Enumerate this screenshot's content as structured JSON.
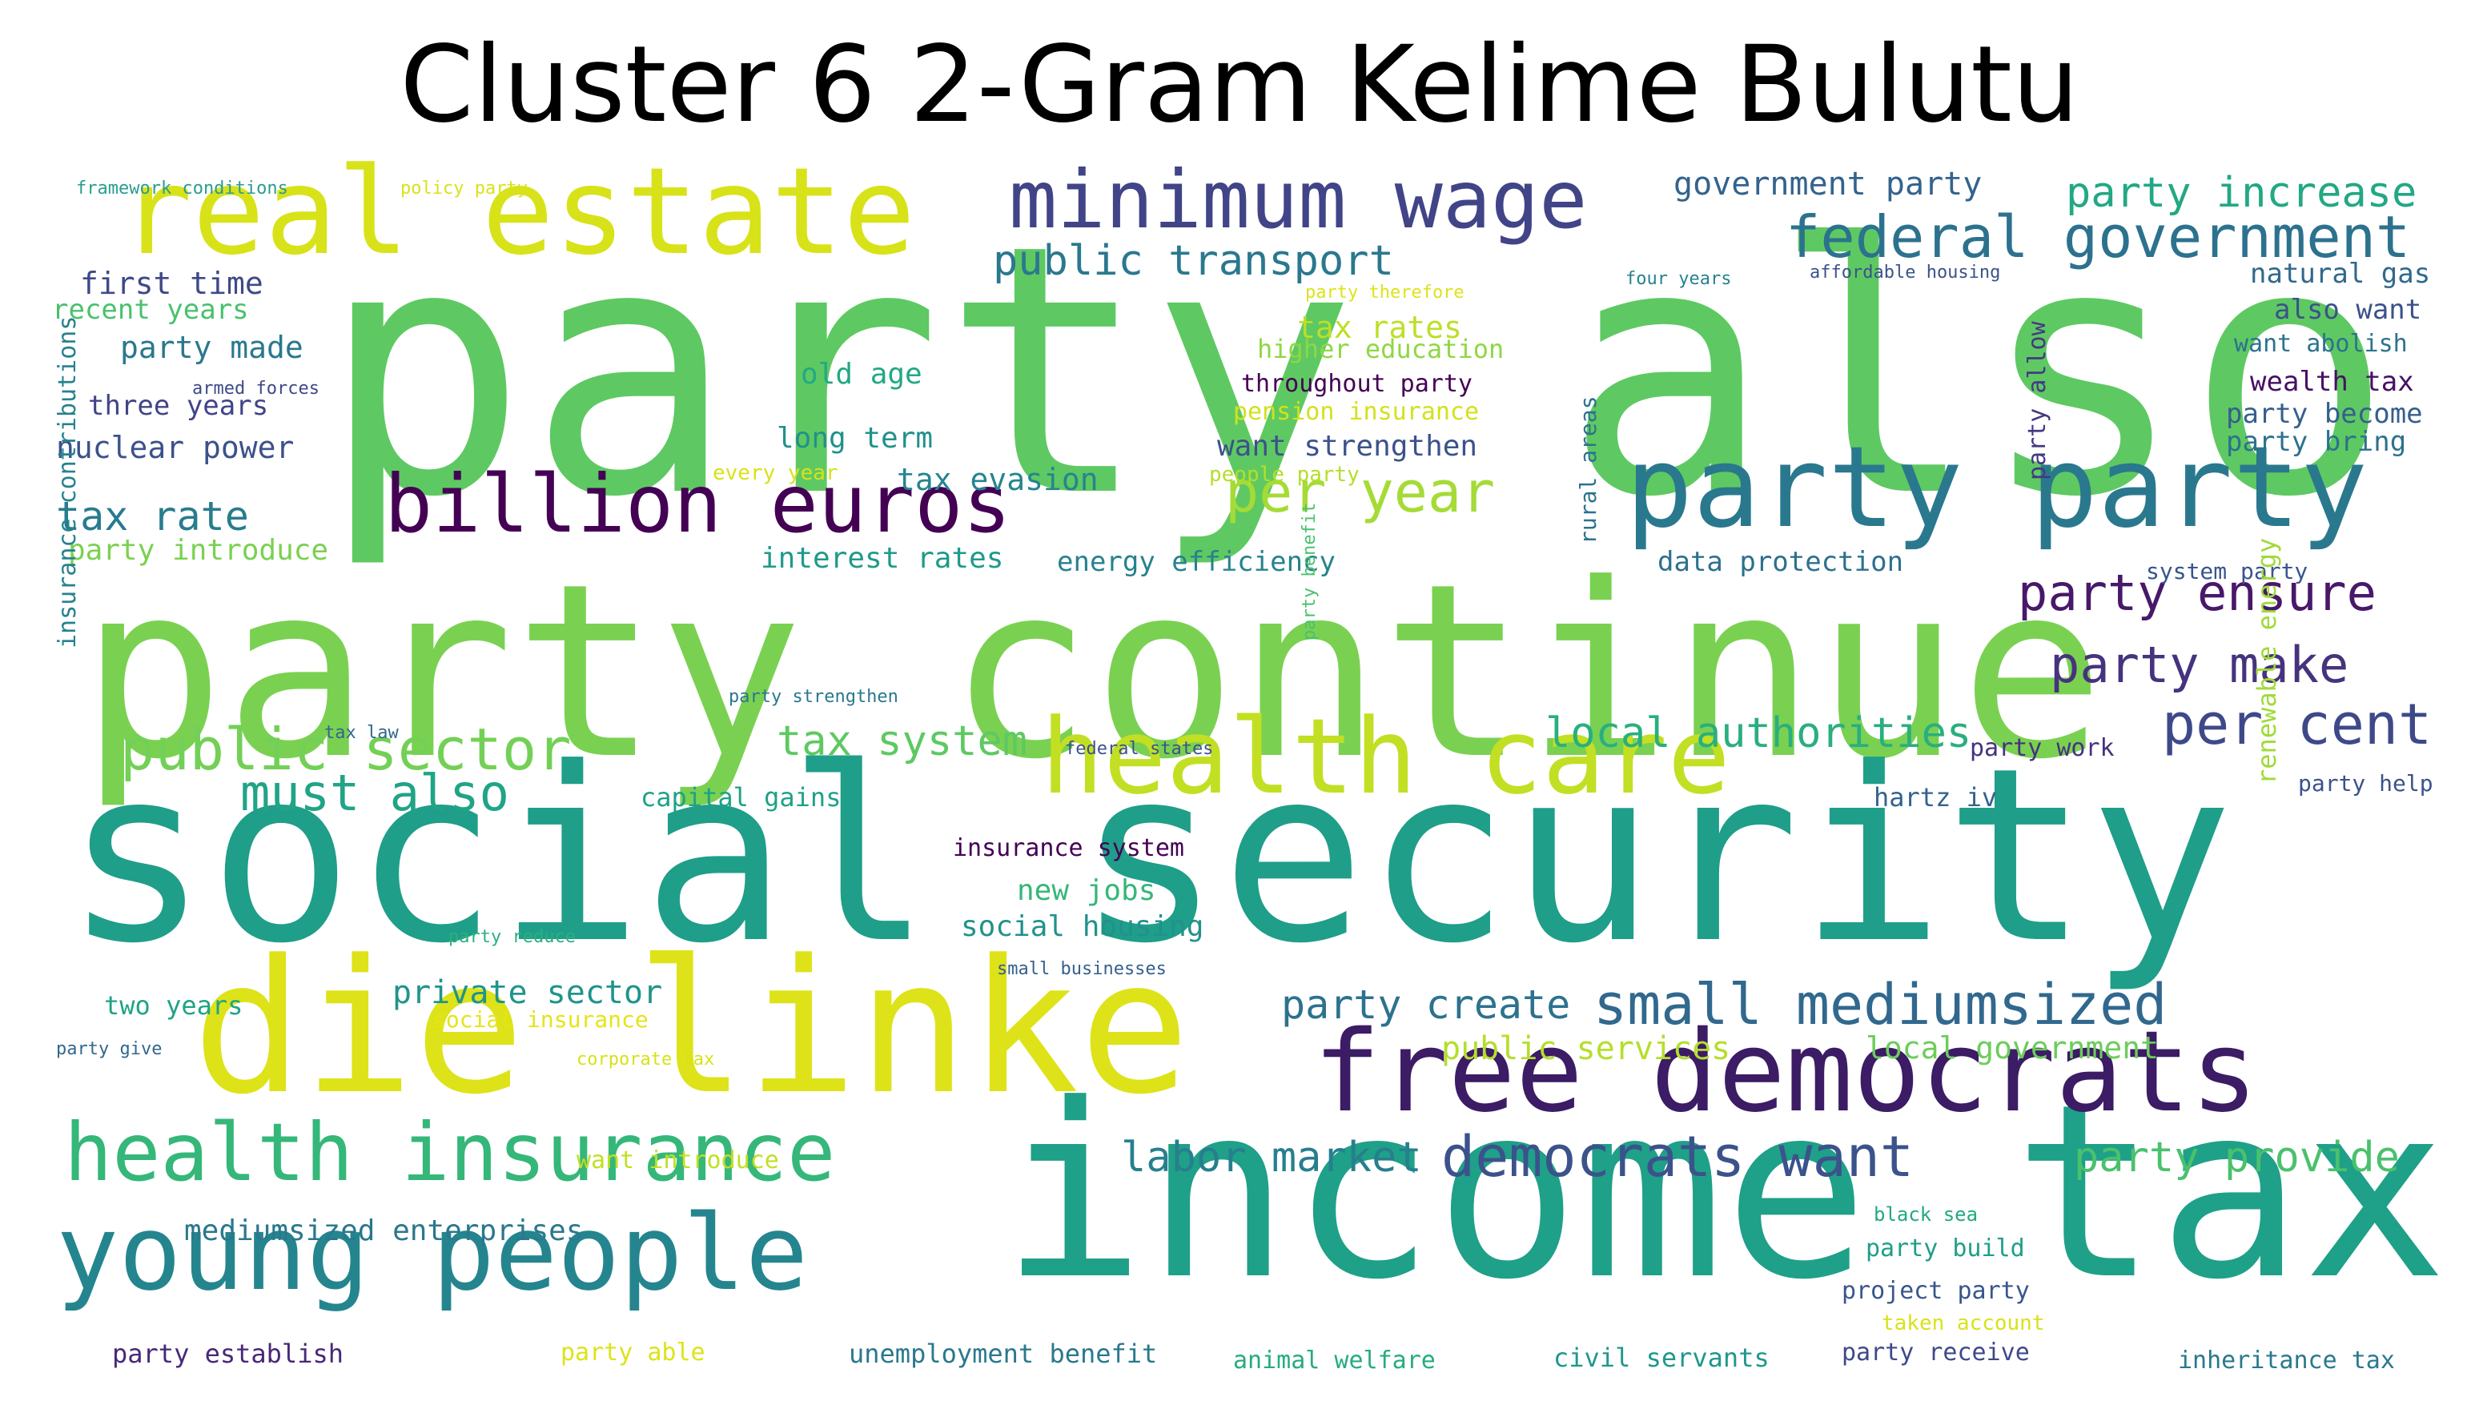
{
  "title": "Cluster 6 2-Gram Kelime Bulutu",
  "words": [
    {
      "text": "party also",
      "color": "#5ec962"
    },
    {
      "text": "party continue",
      "color": "#7ad151"
    },
    {
      "text": "social security",
      "color": "#1f9e89"
    },
    {
      "text": "income tax",
      "color": "#1fa088"
    },
    {
      "text": "die linke",
      "color": "#dde318"
    },
    {
      "text": "real estate",
      "color": "#d8e219"
    },
    {
      "text": "free democrats",
      "color": "#3b1c65"
    },
    {
      "text": "party party",
      "color": "#2a788e"
    },
    {
      "text": "health care",
      "color": "#c2df23"
    },
    {
      "text": "young people",
      "color": "#25858e"
    },
    {
      "text": "health insurance",
      "color": "#35b779"
    },
    {
      "text": "minimum wage",
      "color": "#414487"
    },
    {
      "text": "billion euros",
      "color": "#440154"
    },
    {
      "text": "federal government",
      "color": "#2c728e"
    },
    {
      "text": "public sector",
      "color": "#73d056"
    },
    {
      "text": "party ensure",
      "color": "#48186a"
    },
    {
      "text": "party make",
      "color": "#46337e"
    },
    {
      "text": "per cent",
      "color": "#3e4989"
    },
    {
      "text": "per year",
      "color": "#a5db36"
    },
    {
      "text": "small mediumsized",
      "color": "#31688e"
    },
    {
      "text": "democrats want",
      "color": "#3b528b"
    },
    {
      "text": "must also",
      "color": "#20a486"
    },
    {
      "text": "public transport",
      "color": "#2a788e"
    },
    {
      "text": "party increase",
      "color": "#22a884"
    },
    {
      "text": "party provide",
      "color": "#4ac16d"
    },
    {
      "text": "labor market",
      "color": "#277f8e"
    },
    {
      "text": "local authorities",
      "color": "#29af7f"
    },
    {
      "text": "tax system",
      "color": "#5ec962"
    },
    {
      "text": "party create",
      "color": "#2c728e"
    },
    {
      "text": "tax rate",
      "color": "#287c8e"
    },
    {
      "text": "government party",
      "color": "#33638d"
    },
    {
      "text": "first time",
      "color": "#3e4989"
    },
    {
      "text": "party made",
      "color": "#2a788e"
    },
    {
      "text": "nuclear power",
      "color": "#3b528b"
    },
    {
      "text": "old age",
      "color": "#22a884"
    },
    {
      "text": "long term",
      "color": "#21918c"
    },
    {
      "text": "tax evasion",
      "color": "#25858e"
    },
    {
      "text": "interest rates",
      "color": "#1f9a8a"
    },
    {
      "text": "energy efficiency",
      "color": "#26828e"
    },
    {
      "text": "private sector",
      "color": "#1f948c"
    },
    {
      "text": "mediumsized enterprises",
      "color": "#2a788e"
    },
    {
      "text": "public services",
      "color": "#b5de2b"
    },
    {
      "text": "local government",
      "color": "#6ccd5a"
    },
    {
      "text": "social housing",
      "color": "#21918c"
    },
    {
      "text": "new jobs",
      "color": "#35b779"
    },
    {
      "text": "recent years",
      "color": "#4ac16d"
    },
    {
      "text": "three years",
      "color": "#414487"
    },
    {
      "text": "party introduce",
      "color": "#7ad151"
    },
    {
      "text": "want strengthen",
      "color": "#3b528b"
    },
    {
      "text": "throughout party",
      "color": "#440154"
    },
    {
      "text": "tax rates",
      "color": "#bddf26"
    },
    {
      "text": "higher education",
      "color": "#8fd744"
    },
    {
      "text": "pension insurance",
      "color": "#d2e21b"
    },
    {
      "text": "data protection",
      "color": "#2d708e"
    },
    {
      "text": "natural gas",
      "color": "#31688e"
    },
    {
      "text": "also want",
      "color": "#3b528b"
    },
    {
      "text": "want abolish",
      "color": "#2c728e"
    },
    {
      "text": "wealth tax",
      "color": "#471063"
    },
    {
      "text": "party become",
      "color": "#355f8d"
    },
    {
      "text": "party bring",
      "color": "#2c728e"
    },
    {
      "text": "party allow",
      "color": "#443983"
    },
    {
      "text": "system party",
      "color": "#39558c"
    },
    {
      "text": "party work",
      "color": "#46327e"
    },
    {
      "text": "hartz iv",
      "color": "#33638d"
    },
    {
      "text": "party help",
      "color": "#3b528b"
    },
    {
      "text": "capital gains",
      "color": "#1fa188"
    },
    {
      "text": "insurance system",
      "color": "#440154"
    },
    {
      "text": "two years",
      "color": "#20a386"
    },
    {
      "text": "social insurance",
      "color": "#e5e419"
    },
    {
      "text": "unemployment benefit",
      "color": "#2a788e"
    },
    {
      "text": "animal welfare",
      "color": "#25ab82"
    },
    {
      "text": "civil servants",
      "color": "#1f988b"
    },
    {
      "text": "party receive",
      "color": "#3e4989"
    },
    {
      "text": "inheritance tax",
      "color": "#2a788e"
    },
    {
      "text": "party establish",
      "color": "#482878"
    },
    {
      "text": "party able",
      "color": "#dde318"
    },
    {
      "text": "project party",
      "color": "#39558c"
    },
    {
      "text": "party build",
      "color": "#1f9e89"
    },
    {
      "text": "taken account",
      "color": "#d8e219"
    },
    {
      "text": "black sea",
      "color": "#22a884"
    },
    {
      "text": "want introduce",
      "color": "#c2df23"
    },
    {
      "text": "framework conditions",
      "color": "#2a9d8f"
    },
    {
      "text": "policy party",
      "color": "#d8e219"
    },
    {
      "text": "armed forces",
      "color": "#3e4989"
    },
    {
      "text": "every year",
      "color": "#d8e219"
    },
    {
      "text": "people party",
      "color": "#b5de2b"
    },
    {
      "text": "party therefore",
      "color": "#dde318"
    },
    {
      "text": "four years",
      "color": "#26828e"
    },
    {
      "text": "affordable housing",
      "color": "#3b528b"
    },
    {
      "text": "party strengthen",
      "color": "#2a788e"
    },
    {
      "text": "tax law",
      "color": "#31688e"
    },
    {
      "text": "federal states",
      "color": "#3b528b"
    },
    {
      "text": "party reduce",
      "color": "#2ab07f"
    },
    {
      "text": "small businesses",
      "color": "#355f8d"
    },
    {
      "text": "corporate tax",
      "color": "#d8e219"
    },
    {
      "text": "party give",
      "color": "#31688e"
    },
    {
      "text": "insurance contributions",
      "color": "#26828e"
    },
    {
      "text": "rural areas",
      "color": "#2c728e"
    },
    {
      "text": "party benefit",
      "color": "#4ac16d"
    },
    {
      "text": "renewable energy",
      "color": "#a0da39"
    }
  ]
}
